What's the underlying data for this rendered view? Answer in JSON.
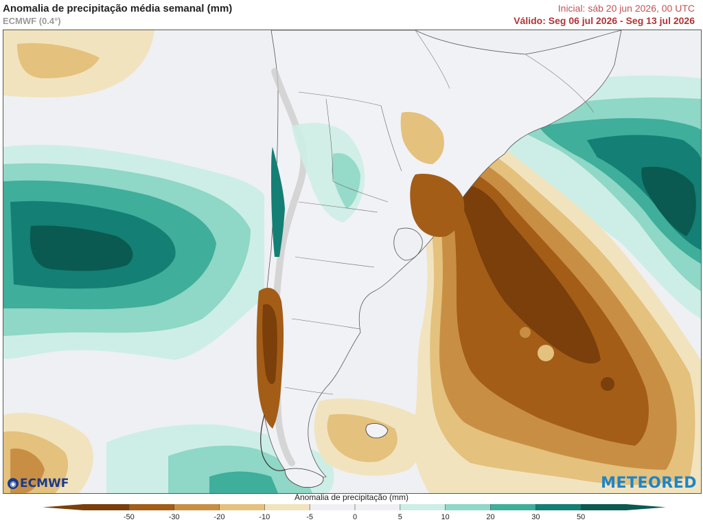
{
  "header": {
    "title": "Anomalia de precipitação média semanal (mm)",
    "subtitle": "ECMWF (0.4°)",
    "initial": "Inicial:  sáb 20 jun 2026, 00 UTC",
    "valid": "Válido: Seg 06 jul 2026 - Seg 13 jul 2026"
  },
  "map": {
    "region": "South America / South Atlantic",
    "logo_left": "ECMWF",
    "logo_right": "METEORED"
  },
  "colorbar": {
    "label": "Anomalia de precipitação (mm)",
    "ticks": [
      "-50",
      "-30",
      "-20",
      "-10",
      "-5",
      "0",
      "5",
      "10",
      "20",
      "30",
      "50"
    ],
    "colors": [
      "#7a3f0a",
      "#a35d17",
      "#c88f44",
      "#e4c17d",
      "#f2e3bf",
      "#eef0f3",
      "#eef0f3",
      "#cdeee6",
      "#8fd7c6",
      "#3fae9b",
      "#147f74",
      "#0a5a52"
    ]
  }
}
